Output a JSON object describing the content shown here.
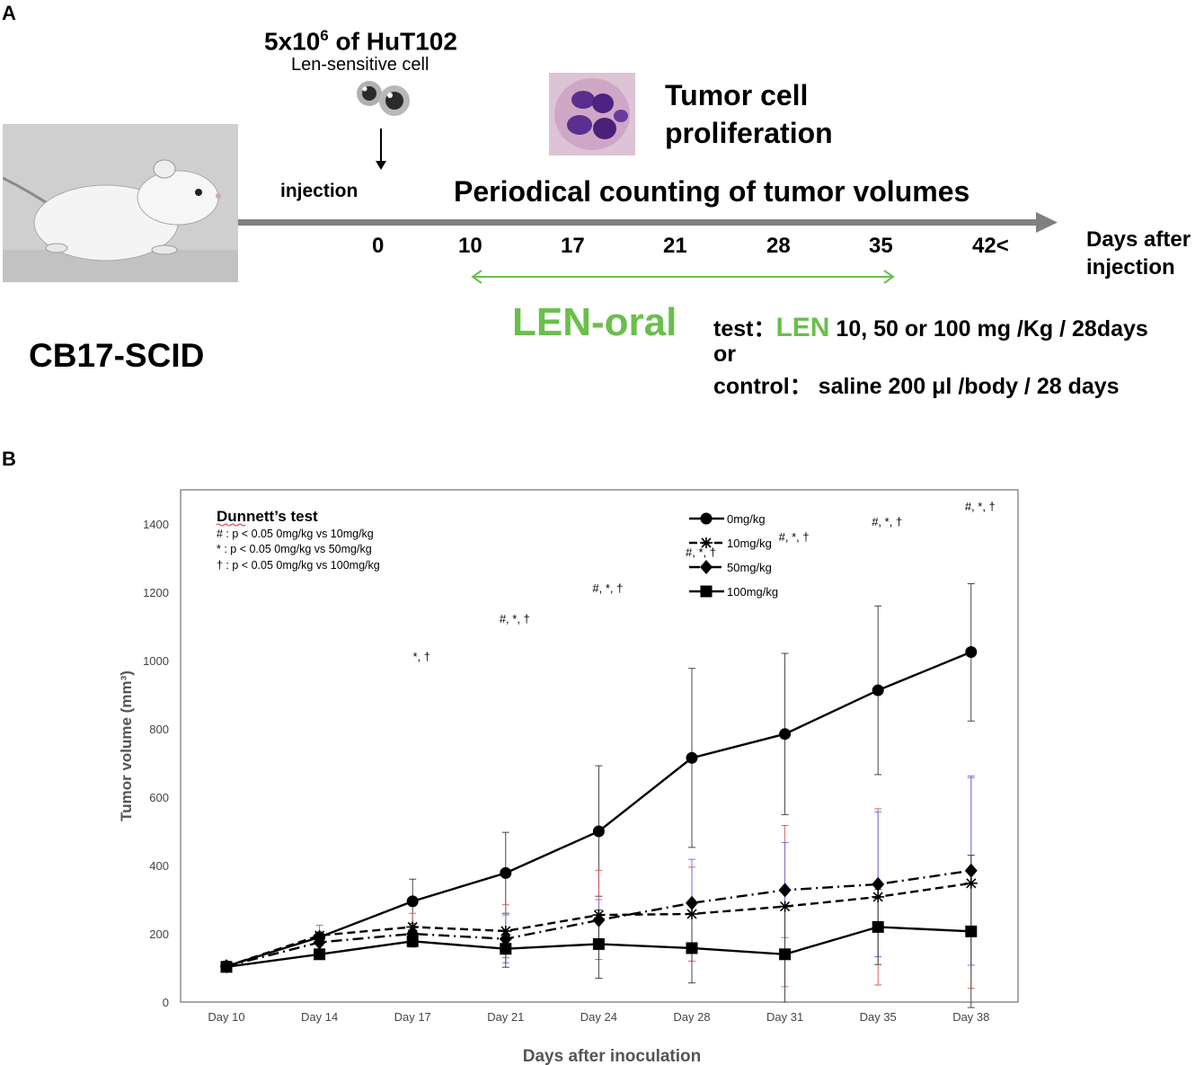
{
  "panel_a": {
    "label": "A",
    "cells": {
      "prefix": "5x10",
      "exp": "6",
      "suffix": " of HuT102",
      "subtitle": "Len-sensitive cell"
    },
    "injection_label": "injection",
    "tumor_text_line1": "Tumor cell",
    "tumor_text_line2": "proliferation",
    "periodical_text": "Periodical counting of tumor volumes",
    "timeline_ticks": [
      "0",
      "10",
      "17",
      "21",
      "28",
      "35",
      "42<"
    ],
    "days_after_line1": "Days after",
    "days_after_line2": "injection",
    "mouse_strain": "CB17-SCID",
    "len_oral": "LEN-oral",
    "test_label": "test：",
    "test_drug": "LEN",
    "test_dose": " 10, 50 or 100 mg /Kg / 28days",
    "or_label": "or",
    "control_text": "control：  saline 200 μl /body / 28 days",
    "colors": {
      "green": "#6abf4b",
      "timeline": "#808080"
    }
  },
  "panel_b": {
    "label": "B"
  },
  "chart_data": {
    "type": "line",
    "xlabel": "Days after inoculation",
    "ylabel": "Tumor volume (mm³)",
    "categories": [
      "Day 10",
      "Day 14",
      "Day 17",
      "Day 21",
      "Day 24",
      "Day 28",
      "Day 31",
      "Day 35",
      "Day 38"
    ],
    "yticks": [
      "0",
      "200",
      "400",
      "600",
      "800",
      "1000",
      "1200",
      "1400"
    ],
    "ylim": [
      0,
      1460
    ],
    "grid": false,
    "legend_position": "top-right",
    "series": [
      {
        "name": "0mg/kg",
        "marker": "circle",
        "dash": "solid",
        "values": [
          105,
          190,
          295,
          378,
          500,
          715,
          785,
          913,
          1025
        ],
        "err_upper": [
          115,
          205,
          360,
          497,
          692,
          977,
          1021,
          1160,
          1225
        ],
        "err_lower": [
          95,
          170,
          230,
          260,
          310,
          453,
          549,
          666,
          823
        ]
      },
      {
        "name": "10mg/kg",
        "marker": "asterisk",
        "dash": "dashed",
        "values": [
          105,
          195,
          220,
          208,
          255,
          258,
          280,
          308,
          348
        ],
        "err_upper": [
          120,
          225,
          260,
          285,
          385,
          395,
          517,
          566,
          657
        ],
        "err_lower": [
          90,
          165,
          180,
          130,
          125,
          120,
          45,
          50,
          40
        ]
      },
      {
        "name": "50mg/kg",
        "marker": "diamond",
        "dash": "dashdot",
        "values": [
          105,
          175,
          200,
          185,
          240,
          290,
          328,
          345,
          385
        ],
        "err_upper": [
          115,
          205,
          225,
          255,
          300,
          418,
          467,
          557,
          662
        ],
        "err_lower": [
          95,
          145,
          175,
          115,
          180,
          162,
          189,
          133,
          108
        ]
      },
      {
        "name": "100mg/kg",
        "marker": "square",
        "dash": "solid",
        "values": [
          103,
          140,
          178,
          156,
          170,
          158,
          140,
          220,
          207
        ],
        "err_upper": [
          115,
          155,
          195,
          210,
          270,
          260,
          280,
          330,
          430
        ],
        "err_lower": [
          91,
          125,
          161,
          102,
          70,
          56,
          0,
          110,
          -16
        ]
      }
    ],
    "annotations": [
      "",
      "",
      "*, †",
      "#, *, †",
      "#, *, †",
      "#, *, †",
      "#, *, †",
      "#, *, †",
      "#, *, †"
    ],
    "annotation_y": [
      0,
      0,
      1000,
      1110,
      1200,
      1305,
      1350,
      1395,
      1440
    ],
    "test_box": {
      "title": "Dunnett’s test",
      "lines": [
        "# : p < 0.05 0mg/kg vs 10mg/kg",
        "* : p < 0.05 0mg/kg vs 50mg/kg",
        "† : p < 0.05 0mg/kg vs 100mg/kg"
      ]
    },
    "error_colors": {
      "10mg/kg": "#e05050",
      "50mg/kg": "#6a6adf"
    }
  }
}
